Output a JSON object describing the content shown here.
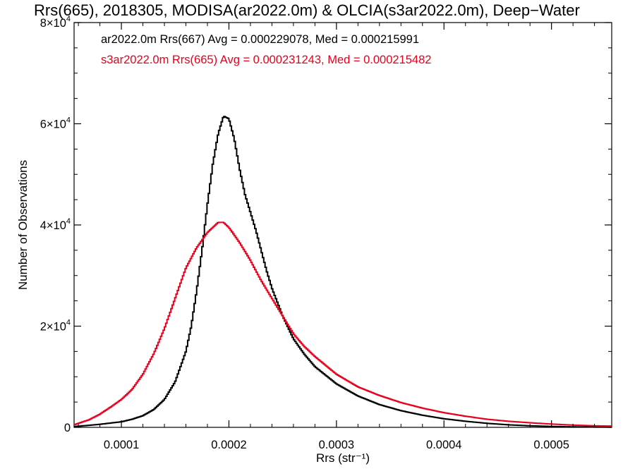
{
  "chart_data": {
    "type": "line",
    "title": "Rrs(665), 2018305, MODISA(ar2022.0m) & OLCIA(s3ar2022.0m), Deep−Water",
    "xlabel": "Rrs (str⁻¹)",
    "ylabel": "Number of Observations",
    "xlim": [
      5.6e-05,
      0.000556
    ],
    "ylim": [
      0,
      80000
    ],
    "x_ticks": [
      {
        "value": 0.0001,
        "label": "0.0001"
      },
      {
        "value": 0.0002,
        "label": "0.0002"
      },
      {
        "value": 0.0003,
        "label": "0.0003"
      },
      {
        "value": 0.0004,
        "label": "0.0004"
      },
      {
        "value": 0.0005,
        "label": "0.0005"
      }
    ],
    "y_ticks": [
      {
        "value": 0,
        "mantissa": "0",
        "exponent": ""
      },
      {
        "value": 20000,
        "mantissa": "2×10",
        "exponent": "4"
      },
      {
        "value": 40000,
        "mantissa": "4×10",
        "exponent": "4"
      },
      {
        "value": 60000,
        "mantissa": "6×10",
        "exponent": "4"
      },
      {
        "value": 80000,
        "mantissa": "8×10",
        "exponent": "4"
      }
    ],
    "grid": false,
    "legend_position": "top-left",
    "series": [
      {
        "name": "ar2022.0m Rrs(667) Avg = 0.000229078, Med = 0.000215991",
        "color": "#000000",
        "x": [
          5.6e-05,
          7e-05,
          8e-05,
          9e-05,
          0.0001,
          0.00011,
          0.00012,
          0.00013,
          0.00014,
          0.00015,
          0.00016,
          0.000165,
          0.00017,
          0.000175,
          0.00018,
          0.000185,
          0.00019,
          0.000195,
          0.0002,
          0.000205,
          0.00021,
          0.000215,
          0.00022,
          0.000225,
          0.00023,
          0.000235,
          0.00024,
          0.00025,
          0.00026,
          0.00027,
          0.00028,
          0.0003,
          0.00032,
          0.00034,
          0.00036,
          0.00038,
          0.0004,
          0.00042,
          0.00044,
          0.00046,
          0.00048,
          0.0005,
          0.00052,
          0.00054,
          0.000556
        ],
        "values": [
          150,
          400,
          600,
          850,
          1100,
          1600,
          2300,
          3500,
          5500,
          9000,
          15000,
          20000,
          27000,
          35000,
          44000,
          52000,
          58000,
          61500,
          61000,
          57000,
          51000,
          46000,
          42500,
          39000,
          35000,
          31000,
          27500,
          22000,
          17500,
          14500,
          12000,
          8600,
          6200,
          4500,
          3300,
          2400,
          1700,
          1200,
          800,
          500,
          300,
          180,
          100,
          60,
          40
        ]
      },
      {
        "name": "s3ar2022.0m Rrs(665) Avg = 0.000231243, Med = 0.000215482",
        "color": "#e8001c",
        "x": [
          5.6e-05,
          7e-05,
          8e-05,
          9e-05,
          0.0001,
          0.00011,
          0.00012,
          0.00013,
          0.00014,
          0.00015,
          0.00016,
          0.00017,
          0.00018,
          0.00019,
          0.000195,
          0.0002,
          0.00021,
          0.00022,
          0.00023,
          0.00024,
          0.00025,
          0.00026,
          0.00027,
          0.00028,
          0.0003,
          0.00032,
          0.00034,
          0.00036,
          0.00038,
          0.0004,
          0.00042,
          0.00044,
          0.00046,
          0.00048,
          0.0005,
          0.00052,
          0.00054,
          0.000556
        ],
        "values": [
          500,
          1500,
          2600,
          4000,
          5500,
          7500,
          10500,
          14500,
          19500,
          25500,
          31500,
          35500,
          38500,
          40500,
          40500,
          39500,
          36500,
          33000,
          29000,
          25500,
          22000,
          18500,
          16000,
          14000,
          10500,
          8000,
          6300,
          4900,
          3800,
          2900,
          2200,
          1600,
          1200,
          900,
          650,
          450,
          300,
          250
        ]
      }
    ]
  }
}
